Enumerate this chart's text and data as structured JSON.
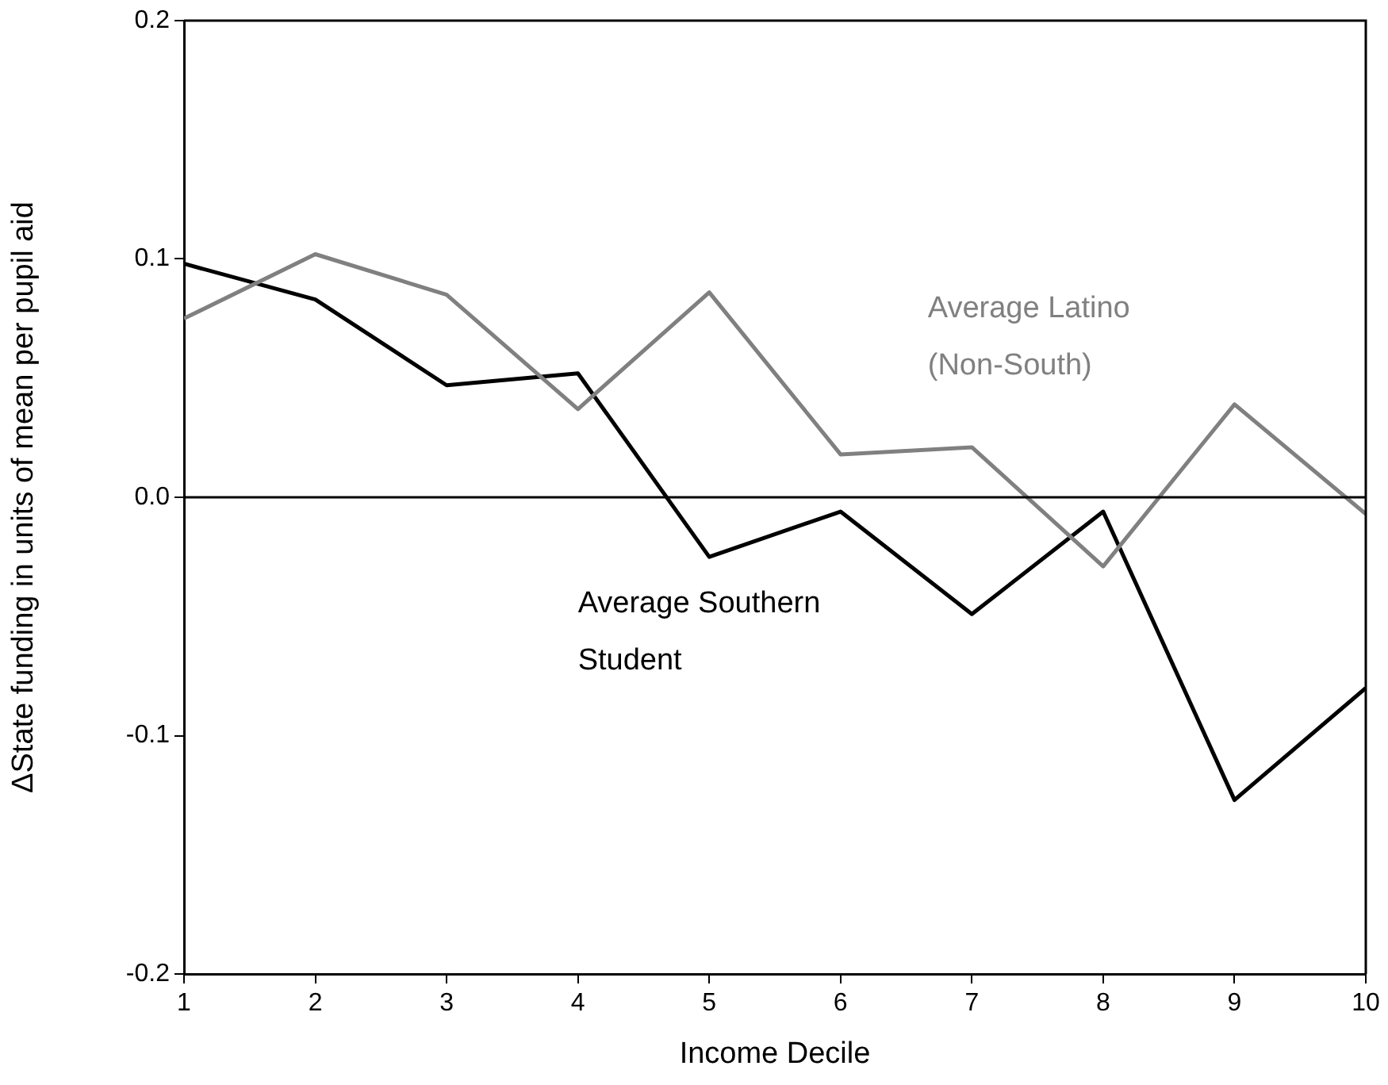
{
  "chart_data": {
    "type": "line",
    "xlabel": "Income Decile",
    "ylabel": "ΔState funding in units of mean per pupil aid",
    "x": [
      1,
      2,
      3,
      4,
      5,
      6,
      7,
      8,
      9,
      10
    ],
    "xlim": [
      1,
      10
    ],
    "xticks": [
      1,
      2,
      3,
      4,
      5,
      6,
      7,
      8,
      9,
      10
    ],
    "ylim": [
      -0.2,
      0.2
    ],
    "yticks": [
      {
        "value": -0.2,
        "label": "-0.2"
      },
      {
        "value": -0.1,
        "label": "-0.1"
      },
      {
        "value": 0,
        "label": "0.0"
      },
      {
        "value": 0.1,
        "label": "0.1"
      },
      {
        "value": 0.2,
        "label": "0.2"
      }
    ],
    "series": [
      {
        "name": "Average Latino (Non-South)",
        "color": "#808080",
        "values": [
          0.075,
          0.102,
          0.085,
          0.037,
          0.086,
          0.018,
          0.021,
          -0.029,
          0.039,
          -0.007
        ]
      },
      {
        "name": "Average Southern Student",
        "color": "#000000",
        "values": [
          0.098,
          0.083,
          0.047,
          0.052,
          -0.025,
          -0.006,
          -0.049,
          -0.006,
          -0.127,
          -0.08
        ]
      }
    ],
    "ref_lines": [
      {
        "axis": "y",
        "value": 0,
        "color": "#000000"
      }
    ],
    "grid": false,
    "legend": false,
    "marker": "none",
    "line_style": "solid"
  }
}
